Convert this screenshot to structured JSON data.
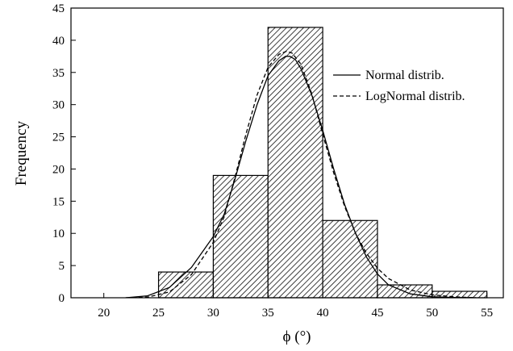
{
  "chart_data": {
    "type": "bar",
    "title": "",
    "xlabel": "ϕ (°)",
    "ylabel": "Frequency",
    "xlim": [
      17,
      56.5
    ],
    "ylim": [
      0,
      45
    ],
    "x_ticks": [
      20,
      25,
      30,
      35,
      40,
      45,
      50,
      55
    ],
    "y_ticks": [
      0,
      5,
      10,
      15,
      20,
      25,
      30,
      35,
      40,
      45
    ],
    "bins": [
      {
        "start": 25,
        "end": 30,
        "value": 4
      },
      {
        "start": 30,
        "end": 35,
        "value": 19
      },
      {
        "start": 35,
        "end": 40,
        "value": 42
      },
      {
        "start": 40,
        "end": 45,
        "value": 12
      },
      {
        "start": 45,
        "end": 50,
        "value": 2
      },
      {
        "start": 50,
        "end": 55,
        "value": 1
      }
    ],
    "curves": [
      {
        "name": "Normal distrib.",
        "style": "solid",
        "x": [
          22.0,
          24.0,
          26.0,
          28.0,
          30.0,
          31.0,
          32.0,
          33.0,
          34.0,
          35.0,
          36.0,
          36.6,
          37.0,
          37.5,
          38.0,
          39.0,
          40.0,
          41.0,
          42.0,
          43.0,
          44.0,
          45.0,
          46.0,
          48.0,
          50.0,
          52.0,
          54.0
        ],
        "y": [
          0.0,
          0.3,
          1.6,
          4.7,
          9.5,
          13.0,
          18.5,
          24.5,
          30.0,
          34.5,
          36.8,
          37.5,
          37.5,
          37.0,
          35.6,
          31.5,
          26.0,
          20.0,
          14.5,
          10.0,
          6.3,
          3.7,
          2.0,
          0.6,
          0.15,
          0.05,
          0.0
        ]
      },
      {
        "name": "LogNormal distrib.",
        "style": "dashed",
        "x": [
          22.0,
          24.0,
          26.0,
          28.0,
          30.0,
          31.0,
          32.0,
          33.0,
          34.0,
          35.0,
          36.0,
          36.7,
          37.2,
          38.0,
          39.0,
          40.0,
          41.0,
          42.0,
          43.0,
          44.0,
          45.0,
          46.0,
          48.0,
          50.0,
          52.0,
          54.0
        ],
        "y": [
          0.0,
          0.1,
          0.9,
          3.6,
          8.6,
          12.6,
          18.8,
          25.5,
          31.5,
          35.8,
          37.8,
          38.3,
          38.0,
          36.3,
          31.7,
          25.4,
          19.4,
          14.2,
          10.0,
          6.9,
          4.6,
          3.0,
          1.2,
          0.45,
          0.15,
          0.0
        ]
      }
    ],
    "legend": [
      {
        "label": "Normal distrib.",
        "style": "solid"
      },
      {
        "label": "LogNormal distrib.",
        "style": "dashed"
      }
    ],
    "legend_position": "top-right",
    "grid": false
  }
}
